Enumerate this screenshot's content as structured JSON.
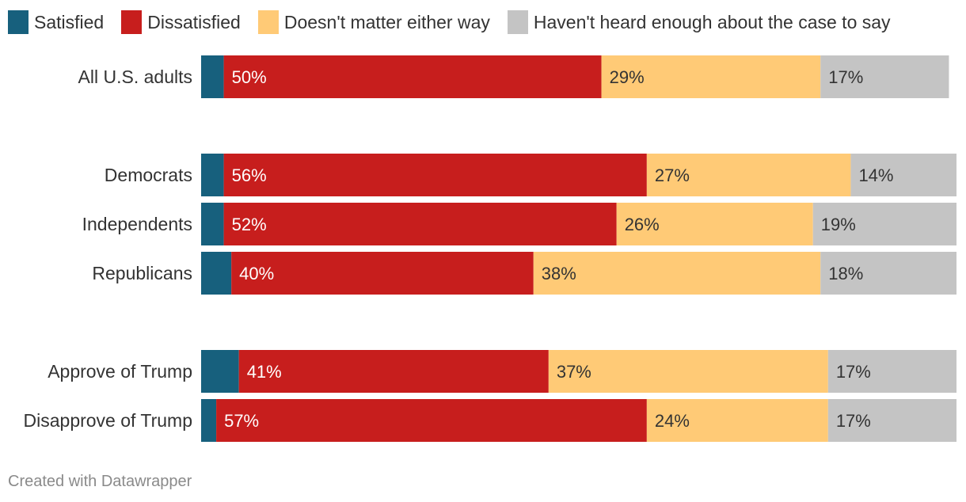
{
  "chart_data": {
    "type": "bar",
    "orientation": "horizontal-stacked",
    "categories": [
      "All U.S. adults",
      "Democrats",
      "Independents",
      "Republicans",
      "Approve of Trump",
      "Disapprove of Trump"
    ],
    "groups": [
      [
        0
      ],
      [
        1,
        2,
        3
      ],
      [
        4,
        5
      ]
    ],
    "series": [
      {
        "name": "Satisfied",
        "color": "#17607d",
        "values": [
          3,
          3,
          3,
          4,
          5,
          2
        ],
        "labels": [
          "",
          "",
          "",
          "",
          "",
          ""
        ]
      },
      {
        "name": "Dissatisfied",
        "color": "#c71e1d",
        "values": [
          50,
          56,
          52,
          40,
          41,
          57
        ],
        "labels": [
          "50%",
          "56%",
          "52%",
          "40%",
          "41%",
          "57%"
        ]
      },
      {
        "name": "Doesn't matter either way",
        "color": "#ffca76",
        "values": [
          29,
          27,
          26,
          38,
          37,
          24
        ],
        "labels": [
          "29%",
          "27%",
          "26%",
          "38%",
          "37%",
          "24%"
        ]
      },
      {
        "name": "Haven't heard enough about the case to say",
        "color": "#c4c4c4",
        "values": [
          17,
          14,
          19,
          18,
          17,
          17
        ],
        "labels": [
          "17%",
          "14%",
          "19%",
          "18%",
          "17%",
          "17%"
        ]
      }
    ],
    "xlim": [
      0,
      100
    ],
    "legend": "top-left",
    "grid": false
  },
  "footer": {
    "credit": "Created with Datawrapper"
  }
}
